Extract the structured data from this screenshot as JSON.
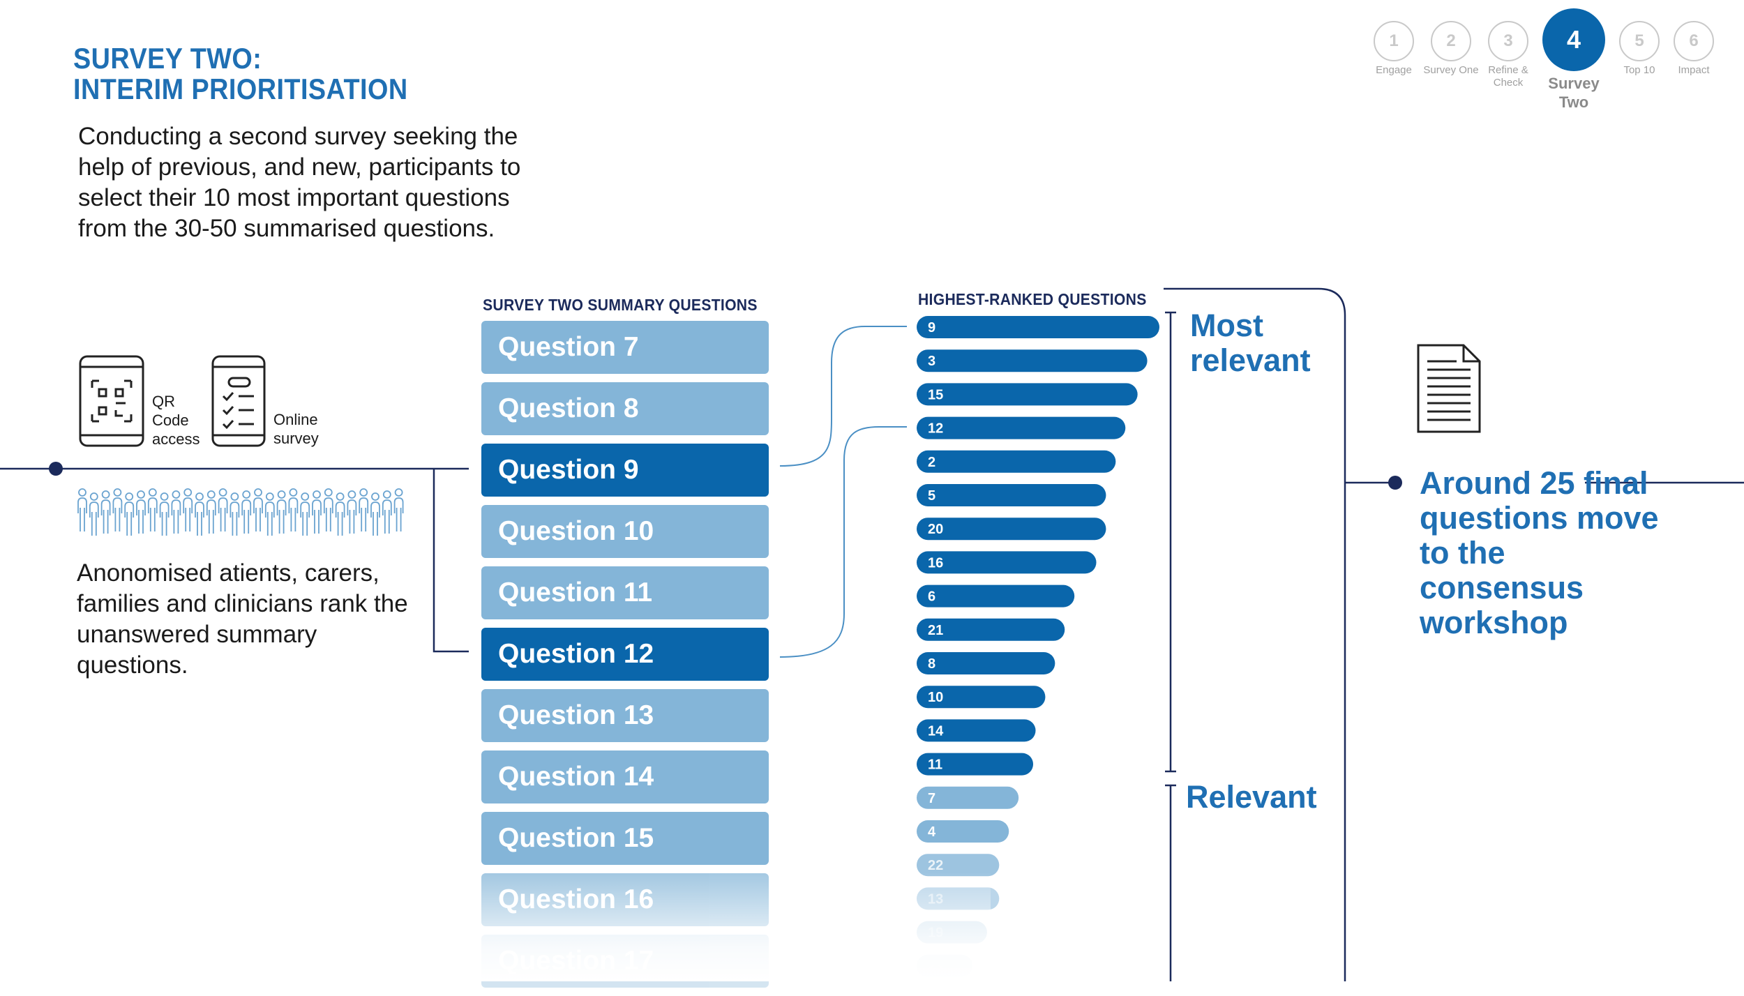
{
  "header": {
    "title_line1": "SURVEY TWO:",
    "title_line2": "INTERIM PRIORITISATION",
    "intro": "Conducting a second survey seeking the help of previous, and new, participants to select their 10 most important questions from the 30-50 summarised questions."
  },
  "steps": [
    {
      "number": "1",
      "label": "Engage",
      "active": false
    },
    {
      "number": "2",
      "label": "Survey One",
      "active": false
    },
    {
      "number": "3",
      "label": "Refine & Check",
      "active": false
    },
    {
      "number": "4",
      "label": "Survey Two",
      "active": true
    },
    {
      "number": "5",
      "label": "Top 10",
      "active": false
    },
    {
      "number": "6",
      "label": "Impact",
      "active": false
    }
  ],
  "access": {
    "qr_label": "QR Code access",
    "online_label": "Online survey"
  },
  "participants_text": "Anonomised atients, carers, families and clinicians rank the unanswered summary questions.",
  "summary": {
    "heading": "SURVEY TWO SUMMARY QUESTIONS",
    "questions": [
      {
        "label": "Question 7",
        "highlight": false
      },
      {
        "label": "Question 8",
        "highlight": false
      },
      {
        "label": "Question 9",
        "highlight": true
      },
      {
        "label": "Question 10",
        "highlight": false
      },
      {
        "label": "Question 11",
        "highlight": false
      },
      {
        "label": "Question 12",
        "highlight": true
      },
      {
        "label": "Question 13",
        "highlight": false
      },
      {
        "label": "Question 14",
        "highlight": false
      },
      {
        "label": "Question 15",
        "highlight": false
      },
      {
        "label": "Question 16",
        "highlight": false
      },
      {
        "label": "Question 17",
        "highlight": false
      }
    ]
  },
  "ranking": {
    "heading": "HIGHEST-RANKED QUESTIONS",
    "most_label": "Most relevant",
    "relevant_label": "Relevant",
    "bars": [
      {
        "q": "9",
        "score": 100,
        "group": "most"
      },
      {
        "q": "3",
        "score": 95,
        "group": "most"
      },
      {
        "q": "15",
        "score": 91,
        "group": "most"
      },
      {
        "q": "12",
        "score": 86,
        "group": "most"
      },
      {
        "q": "2",
        "score": 82,
        "group": "most"
      },
      {
        "q": "5",
        "score": 78,
        "group": "most"
      },
      {
        "q": "20",
        "score": 78,
        "group": "most"
      },
      {
        "q": "16",
        "score": 74,
        "group": "most"
      },
      {
        "q": "6",
        "score": 65,
        "group": "most"
      },
      {
        "q": "21",
        "score": 61,
        "group": "most"
      },
      {
        "q": "8",
        "score": 57,
        "group": "most"
      },
      {
        "q": "10",
        "score": 53,
        "group": "most"
      },
      {
        "q": "14",
        "score": 49,
        "group": "most"
      },
      {
        "q": "11",
        "score": 48,
        "group": "most"
      },
      {
        "q": "7",
        "score": 42,
        "group": "relevant"
      },
      {
        "q": "4",
        "score": 38,
        "group": "relevant"
      },
      {
        "q": "22",
        "score": 34,
        "group": "relevant"
      },
      {
        "q": "13",
        "score": 34,
        "group": "relevant"
      },
      {
        "q": "19",
        "score": 29,
        "group": "relevant"
      },
      {
        "q": "23",
        "score": 23,
        "group": "relevant"
      }
    ]
  },
  "outcome": {
    "text": "Around 25 final questions move to the consensus workshop"
  },
  "colors": {
    "brand_blue": "#1f6fb3",
    "dark_bar": "#0a66ab",
    "light_bar": "#84b5d8",
    "navy_line": "#1b2a5b"
  }
}
